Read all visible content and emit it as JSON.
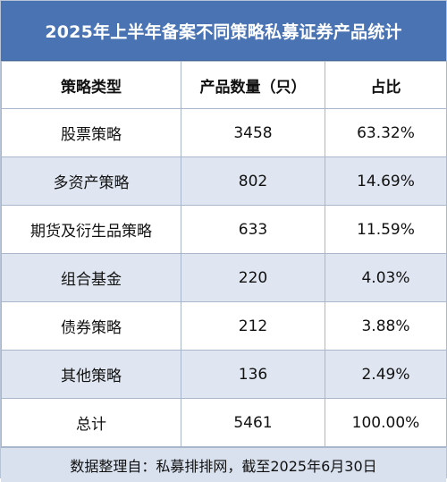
{
  "title": "2025年上半年备案不同策略私募证券产品统计",
  "colors": {
    "header_bg": "#4a73b3",
    "stripe_bg": "#dfe6f1",
    "footer_bg": "#d9e1ee"
  },
  "columns": [
    "策略类型",
    "产品数量（只）",
    "占比"
  ],
  "rows": [
    {
      "strategy": "股票策略",
      "count": "3458",
      "share": "63.32%"
    },
    {
      "strategy": "多资产策略",
      "count": "802",
      "share": "14.69%"
    },
    {
      "strategy": "期货及衍生品策略",
      "count": "633",
      "share": "11.59%"
    },
    {
      "strategy": "组合基金",
      "count": "220",
      "share": "4.03%"
    },
    {
      "strategy": "债券策略",
      "count": "212",
      "share": "3.88%"
    },
    {
      "strategy": "其他策略",
      "count": "136",
      "share": "2.49%"
    }
  ],
  "total": {
    "label": "总计",
    "count": "5461",
    "share": "100.00%"
  },
  "footer": "数据整理自：私募排排网，截至2025年6月30日"
}
